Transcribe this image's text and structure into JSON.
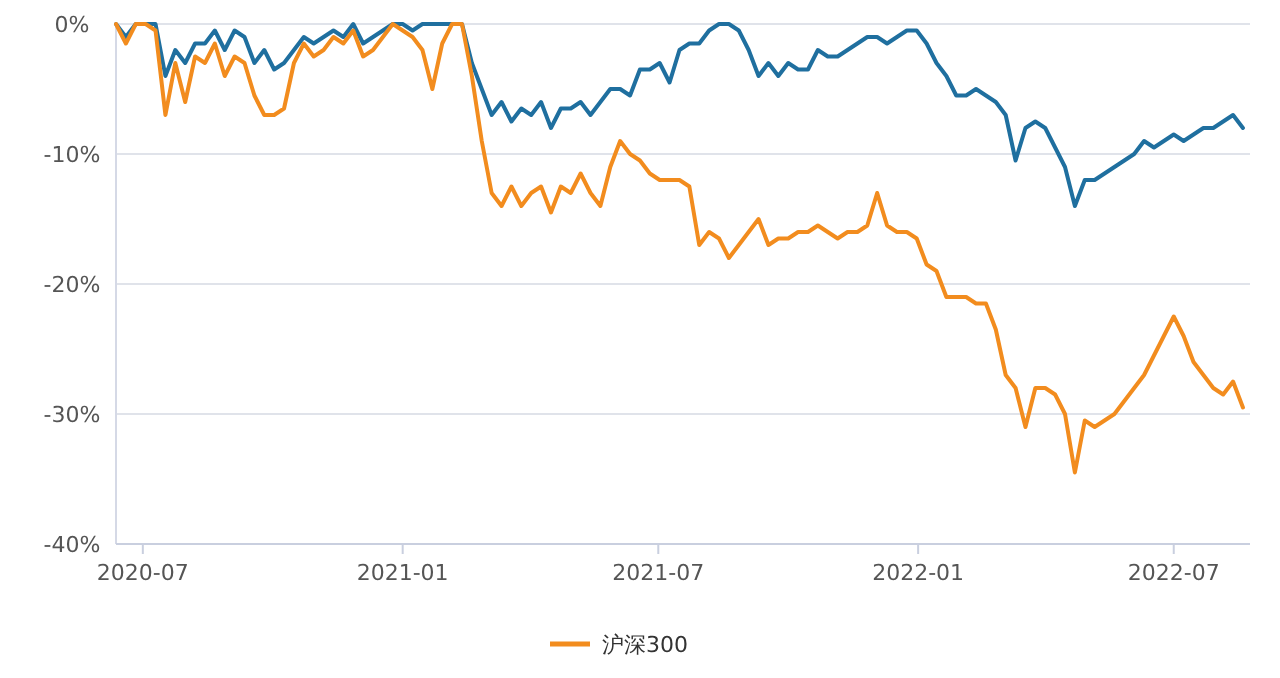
{
  "chart_data": {
    "type": "line",
    "x": [
      "2020-06-12",
      "2020-06-19",
      "2020-06-26",
      "2020-07-03",
      "2020-07-10",
      "2020-07-17",
      "2020-07-24",
      "2020-07-31",
      "2020-08-07",
      "2020-08-14",
      "2020-08-21",
      "2020-08-28",
      "2020-09-04",
      "2020-09-11",
      "2020-09-18",
      "2020-09-25",
      "2020-10-02",
      "2020-10-09",
      "2020-10-16",
      "2020-10-23",
      "2020-10-30",
      "2020-11-06",
      "2020-11-13",
      "2020-11-20",
      "2020-11-27",
      "2020-12-04",
      "2020-12-11",
      "2020-12-18",
      "2020-12-25",
      "2021-01-01",
      "2021-01-08",
      "2021-01-15",
      "2021-01-22",
      "2021-01-29",
      "2021-02-05",
      "2021-02-12",
      "2021-02-19",
      "2021-02-26",
      "2021-03-05",
      "2021-03-12",
      "2021-03-19",
      "2021-03-26",
      "2021-04-02",
      "2021-04-09",
      "2021-04-16",
      "2021-04-23",
      "2021-04-30",
      "2021-05-07",
      "2021-05-14",
      "2021-05-21",
      "2021-05-28",
      "2021-06-04",
      "2021-06-11",
      "2021-06-18",
      "2021-06-25",
      "2021-07-02",
      "2021-07-09",
      "2021-07-16",
      "2021-07-23",
      "2021-07-30",
      "2021-08-06",
      "2021-08-13",
      "2021-08-20",
      "2021-08-27",
      "2021-09-03",
      "2021-09-10",
      "2021-09-17",
      "2021-09-24",
      "2021-10-01",
      "2021-10-08",
      "2021-10-15",
      "2021-10-22",
      "2021-10-29",
      "2021-11-05",
      "2021-11-12",
      "2021-11-19",
      "2021-11-26",
      "2021-12-03",
      "2021-12-10",
      "2021-12-17",
      "2021-12-24",
      "2021-12-31",
      "2022-01-07",
      "2022-01-14",
      "2022-01-21",
      "2022-01-28",
      "2022-02-04",
      "2022-02-11",
      "2022-02-18",
      "2022-02-25",
      "2022-03-04",
      "2022-03-11",
      "2022-03-18",
      "2022-03-25",
      "2022-04-01",
      "2022-04-08",
      "2022-04-15",
      "2022-04-22",
      "2022-04-29",
      "2022-05-06",
      "2022-05-13",
      "2022-05-20",
      "2022-05-27",
      "2022-06-03",
      "2022-06-10",
      "2022-06-17",
      "2022-06-24",
      "2022-07-01",
      "2022-07-08",
      "2022-07-15",
      "2022-07-22",
      "2022-07-29",
      "2022-08-05",
      "2022-08-12",
      "2022-08-19"
    ],
    "series": [
      {
        "color": "#1f6f9f",
        "values": [
          0,
          -1,
          0,
          0,
          0,
          -4,
          -2,
          -3,
          -1.5,
          -1.5,
          -0.5,
          -2,
          -0.5,
          -1,
          -3,
          -2,
          -3.5,
          -3,
          -2,
          -1,
          -1.5,
          -1,
          -0.5,
          -1,
          0,
          -1.5,
          -1,
          -0.5,
          0,
          0,
          -0.5,
          0,
          0,
          0,
          0,
          0,
          -3,
          -5,
          -7,
          -6,
          -7.5,
          -6.5,
          -7,
          -6,
          -8,
          -6.5,
          -6.5,
          -6,
          -7,
          -6,
          -5,
          -5,
          -5.5,
          -3.5,
          -3.5,
          -3,
          -4.5,
          -2,
          -1.5,
          -1.5,
          -0.5,
          0,
          0,
          -0.5,
          -2,
          -4,
          -3,
          -4,
          -3,
          -3.5,
          -3.5,
          -2,
          -2.5,
          -2.5,
          -2,
          -1.5,
          -1,
          -1,
          -1.5,
          -1,
          -0.5,
          -0.5,
          -1.5,
          -3,
          -4,
          -5.5,
          -5.5,
          -5,
          -5.5,
          -6,
          -7,
          -10.5,
          -8,
          -7.5,
          -8,
          -9.5,
          -11,
          -14,
          -12,
          -12,
          -11.5,
          -11,
          -10.5,
          -10,
          -9,
          -9.5,
          -9,
          -8.5,
          -9,
          -8.5,
          -8,
          -8,
          -7.5,
          -7,
          -8
        ]
      },
      {
        "name": "沪深300",
        "color": "#f28c1e",
        "values": [
          0,
          -1.5,
          0,
          0,
          -0.5,
          -7,
          -3,
          -6,
          -2.5,
          -3,
          -1.5,
          -4,
          -2.5,
          -3,
          -5.5,
          -7,
          -7,
          -6.5,
          -3,
          -1.5,
          -2.5,
          -2,
          -1,
          -1.5,
          -0.5,
          -2.5,
          -2,
          -1,
          0,
          -0.5,
          -1,
          -2,
          -5,
          -1.5,
          0,
          0,
          -4,
          -9,
          -13,
          -14,
          -12.5,
          -14,
          -13,
          -12.5,
          -14.5,
          -12.5,
          -13,
          -11.5,
          -13,
          -14,
          -11,
          -9,
          -10,
          -10.5,
          -11.5,
          -12,
          -12,
          -12,
          -12.5,
          -17,
          -16,
          -16.5,
          -18,
          -17,
          -16,
          -15,
          -17,
          -16.5,
          -16.5,
          -16,
          -16,
          -15.5,
          -16,
          -16.5,
          -16,
          -16,
          -15.5,
          -13,
          -15.5,
          -16,
          -16,
          -16.5,
          -18.5,
          -19,
          -21,
          -21,
          -21,
          -21.5,
          -21.5,
          -23.5,
          -27,
          -28,
          -31,
          -28,
          -28,
          -28.5,
          -30,
          -34.5,
          -30.5,
          -31,
          -30.5,
          -30,
          -29,
          -28,
          -27,
          -25.5,
          -24,
          -22.5,
          -24,
          -26,
          -27,
          -28,
          -28.5,
          -27.5,
          -29.5
        ]
      }
    ],
    "xlim": [
      "2020-06-12",
      "2022-08-24"
    ],
    "xticks": [
      "2020-07",
      "2021-01",
      "2021-07",
      "2022-01",
      "2022-07"
    ],
    "ylim": [
      -40,
      0
    ],
    "yticks": [
      {
        "value": -40,
        "label": "-40%"
      },
      {
        "value": -30,
        "label": "-30%"
      },
      {
        "value": -20,
        "label": "-20%"
      },
      {
        "value": -10,
        "label": "-10%"
      },
      {
        "value": 0,
        "label": "0%"
      }
    ],
    "grid": "y",
    "legend": "bottom"
  }
}
